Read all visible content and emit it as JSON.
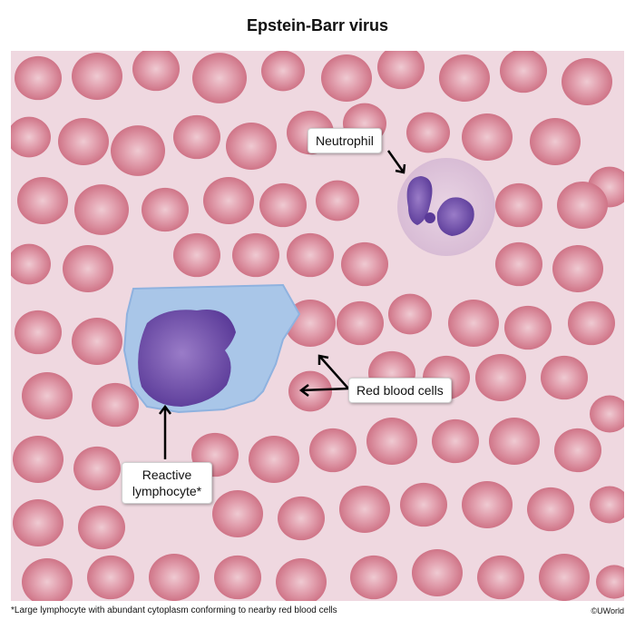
{
  "title": "Epstein-Barr virus",
  "labels": {
    "neutrophil": "Neutrophil",
    "red_blood_cells": "Red blood cells",
    "reactive_lymphocyte_line1": "Reactive",
    "reactive_lymphocyte_line2": "lymphocyte*"
  },
  "footnote": "*Large lymphocyte with abundant cytoplasm conforming to nearby red blood cells",
  "copyright": "©UWorld",
  "colors": {
    "background": "#efd8e0",
    "rbc": "#d98795",
    "rbc_pale": "#edc7cf",
    "cytoplasm": "#a9c6e8",
    "nucleus": "#6a4aa6"
  }
}
